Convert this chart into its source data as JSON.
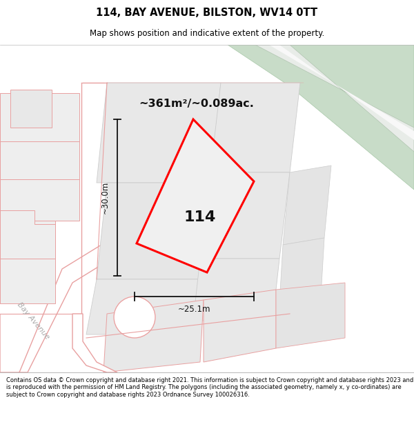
{
  "title_line1": "114, BAY AVENUE, BILSTON, WV14 0TT",
  "title_line2": "Map shows position and indicative extent of the property.",
  "area_label": "~361m²/~0.089ac.",
  "property_number": "114",
  "dim_vertical": "~30.0m",
  "dim_horizontal": "~25.1m",
  "street_label": "Bay Avenue",
  "footer_text": "Contains OS data © Crown copyright and database right 2021. This information is subject to Crown copyright and database rights 2023 and is reproduced with the permission of HM Land Registry. The polygons (including the associated geometry, namely x, y co-ordinates) are subject to Crown copyright and database rights 2023 Ordnance Survey 100026316.",
  "bg_map_color": "#f2f2f2",
  "road_stroke": "#e8a0a0",
  "green_area_color": "#c8dcc8",
  "property_stroke": "#ff0000",
  "property_fill": "#f0f0f0",
  "dim_color": "#111111",
  "footer_bg": "#ffffff",
  "title_bg": "#ffffff",
  "building_fill": "#e2e2e2",
  "building_stroke": "#cccccc",
  "white_fill": "#ffffff"
}
